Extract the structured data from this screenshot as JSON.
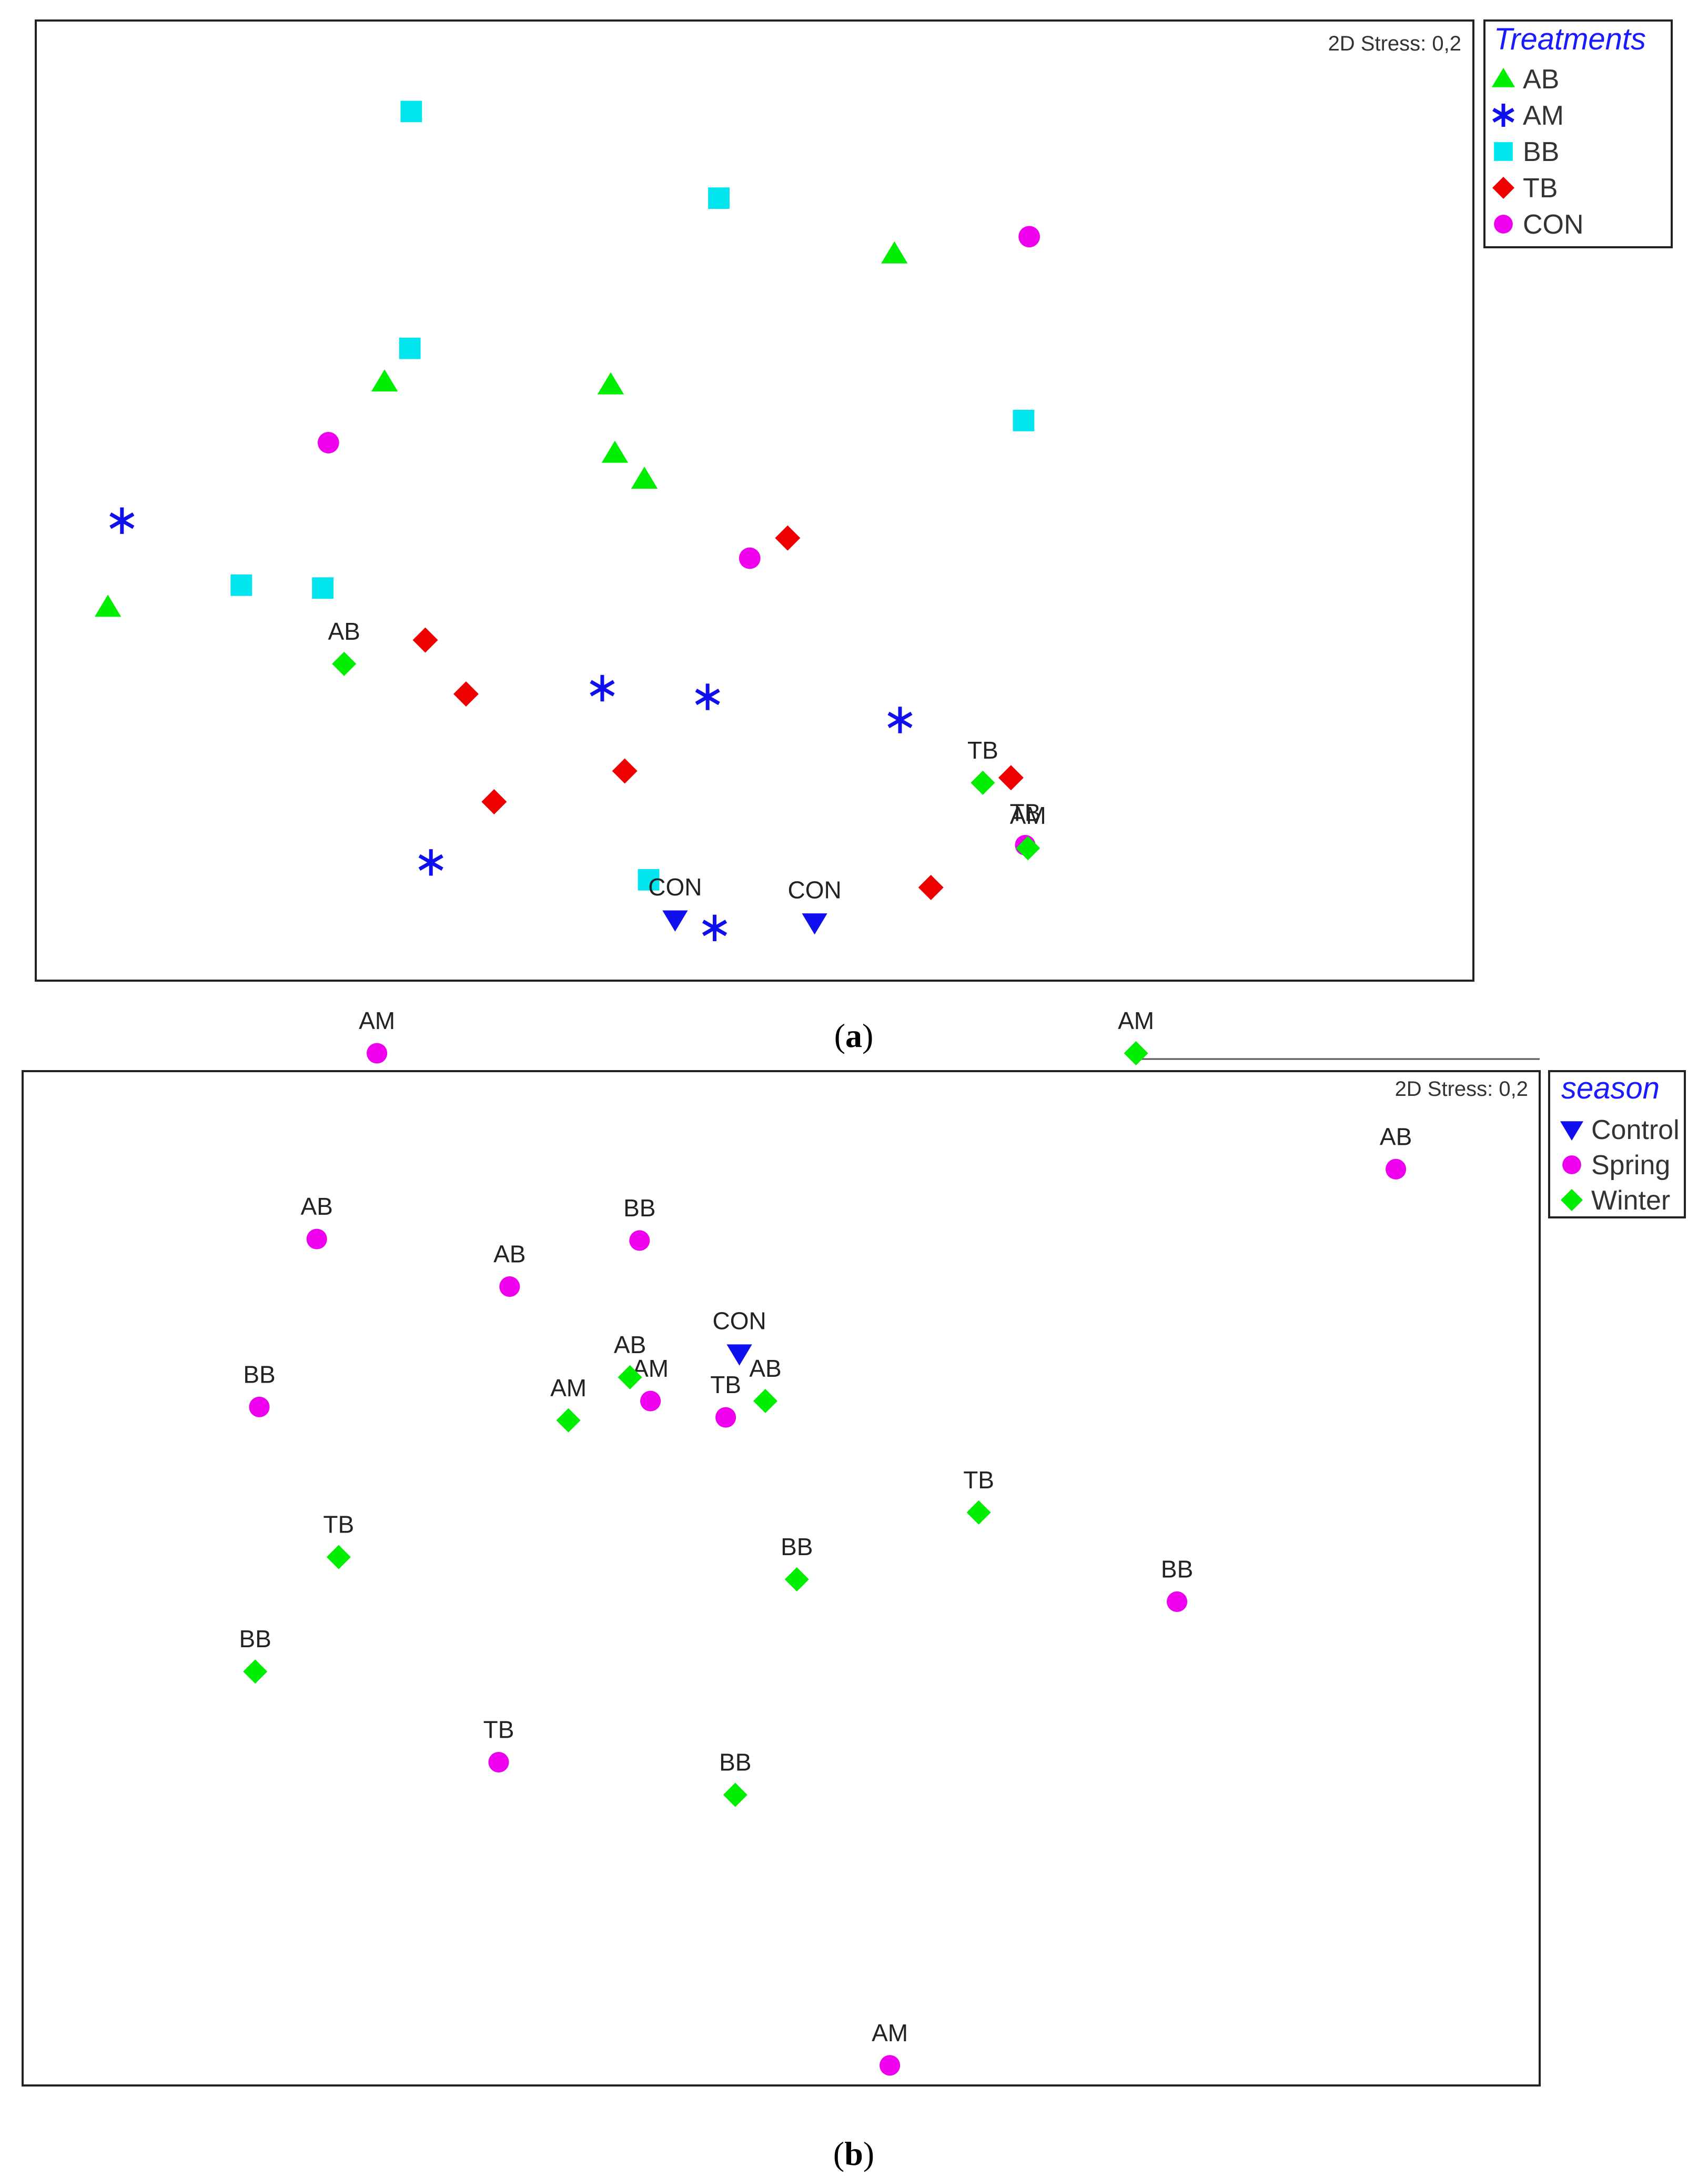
{
  "chart_data": [
    {
      "type": "scatter",
      "panel": "a",
      "caption_letter": "a",
      "stress": "2D Stress: 0,2",
      "legend_title": "Treatments",
      "legend_position": "top-right outside",
      "grid": false,
      "axes_visible": false,
      "series": [
        {
          "name": "AB",
          "marker": "triangle-up",
          "color": "#00ee00",
          "x": [
            59.0,
            38.8,
            41.2,
            39.1,
            22.7,
            3.0
          ],
          "y": [
            73.4,
            59.8,
            50.0,
            52.7,
            60.1,
            36.7
          ]
        },
        {
          "name": "AM",
          "marker": "asterisk",
          "color": "#1010ee",
          "x": [
            4.0,
            46.2,
            45.7,
            59.4,
            38.2,
            26.0
          ],
          "y": [
            45.7,
            3.4,
            27.4,
            25.0,
            28.3,
            10.2
          ]
        },
        {
          "name": "BB",
          "marker": "square",
          "color": "#00e5ee",
          "x": [
            24.6,
            46.5,
            41.5,
            24.5,
            68.2,
            12.5,
            18.3
          ],
          "y": [
            88.2,
            79.2,
            8.4,
            63.6,
            56.1,
            39.0,
            38.7
          ]
        },
        {
          "name": "TB",
          "marker": "diamond",
          "color": "#ee0000",
          "x": [
            51.4,
            25.6,
            30.5,
            67.3,
            28.5,
            39.8,
            61.6
          ],
          "y": [
            43.9,
            33.3,
            16.5,
            19.0,
            27.7,
            19.7,
            7.6
          ]
        },
        {
          "name": "CON",
          "marker": "circle",
          "color": "#ee00ee",
          "x": [
            68.6,
            18.7,
            48.7
          ],
          "y": [
            75.2,
            53.8,
            41.8
          ]
        }
      ]
    },
    {
      "type": "scatter",
      "panel": "b",
      "caption_letter": "b",
      "stress": "2D Stress: 0,2",
      "legend_title": "season",
      "legend_position": "top-right outside",
      "grid": false,
      "axes_visible": false,
      "series": [
        {
          "name": "Control",
          "marker": "triangle-down",
          "color": "#1010ee",
          "points": [
            {
              "label": "CON",
              "x": 35.9,
              "y": 65.0
            },
            {
              "label": "CON",
              "x": 46.1,
              "y": 64.8
            },
            {
              "label": "CON",
              "x": 40.6,
              "y": 35.8
            }
          ]
        },
        {
          "name": "Spring",
          "marker": "circle",
          "color": "#ee00ee",
          "points": [
            {
              "label": "TB",
              "x": 61.5,
              "y": 70.0
            },
            {
              "label": "AM",
              "x": 14.1,
              "y": 56.0
            },
            {
              "label": "AB",
              "x": 88.6,
              "y": 48.2
            },
            {
              "label": "AB",
              "x": 9.7,
              "y": 43.5
            },
            {
              "label": "AB",
              "x": 23.8,
              "y": 40.3
            },
            {
              "label": "BB",
              "x": 33.3,
              "y": 43.4
            },
            {
              "label": "BB",
              "x": 5.5,
              "y": 32.2
            },
            {
              "label": "AM",
              "x": 34.1,
              "y": 32.6
            },
            {
              "label": "TB",
              "x": 39.6,
              "y": 31.5
            },
            {
              "label": "BB",
              "x": 72.6,
              "y": 19.1
            },
            {
              "label": "TB",
              "x": 23.0,
              "y": 8.3
            },
            {
              "label": "AM",
              "x": 51.6,
              "y": -12.1
            }
          ]
        },
        {
          "name": "Winter",
          "marker": "diamond",
          "color": "#00ee00",
          "points": [
            {
              "label": "AB",
              "x": 11.7,
              "y": 82.2
            },
            {
              "label": "TB",
              "x": 58.4,
              "y": 74.2
            },
            {
              "label": "AM",
              "x": 61.7,
              "y": 69.8
            },
            {
              "label": "AM",
              "x": 69.6,
              "y": 56.0
            },
            {
              "label": "AB",
              "x": 32.6,
              "y": 34.2
            },
            {
              "label": "AB",
              "x": 42.5,
              "y": 32.6
            },
            {
              "label": "AM",
              "x": 28.1,
              "y": 31.3
            },
            {
              "label": "TB",
              "x": 58.1,
              "y": 25.1
            },
            {
              "label": "TB",
              "x": 11.3,
              "y": 22.1
            },
            {
              "label": "BB",
              "x": 44.8,
              "y": 20.6
            },
            {
              "label": "BB",
              "x": 5.2,
              "y": 14.4
            },
            {
              "label": "BB",
              "x": 40.3,
              "y": 6.1
            }
          ]
        }
      ]
    }
  ]
}
